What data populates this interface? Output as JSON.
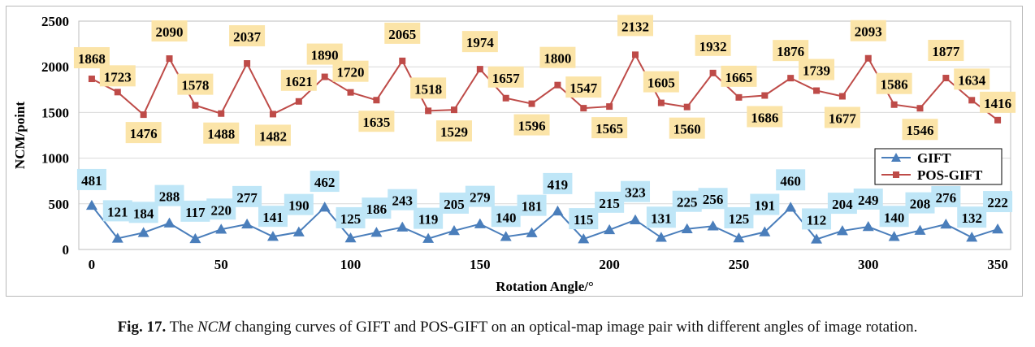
{
  "caption": {
    "label": "Fig. 17.",
    "pre": "The ",
    "italic": "NCM",
    "post": " changing curves of GIFT and POS-GIFT on an optical-map image pair with different angles of image rotation."
  },
  "chart_data": {
    "type": "line",
    "title": "",
    "xlabel": "Rotation Angle/°",
    "ylabel": "NCM/point",
    "xlim": [
      -5,
      355
    ],
    "ylim": [
      0,
      2500
    ],
    "xticks": [
      0,
      50,
      100,
      150,
      200,
      250,
      300,
      350
    ],
    "yticks": [
      0,
      500,
      1000,
      1500,
      2000,
      2500
    ],
    "grid": true,
    "legend_position": "right",
    "x": [
      0,
      10,
      20,
      30,
      40,
      50,
      60,
      70,
      80,
      90,
      100,
      110,
      120,
      130,
      140,
      150,
      160,
      170,
      180,
      190,
      200,
      210,
      220,
      230,
      240,
      250,
      260,
      270,
      280,
      290,
      300,
      310,
      320,
      330,
      340,
      350
    ],
    "series": [
      {
        "name": "GIFT",
        "color": "#4a7ebb",
        "label_bg": "#bfe6f7",
        "marker": "triangle",
        "values": [
          481,
          121,
          184,
          288,
          117,
          220,
          277,
          141,
          190,
          462,
          125,
          186,
          243,
          119,
          205,
          279,
          140,
          181,
          419,
          115,
          215,
          323,
          131,
          225,
          256,
          125,
          191,
          460,
          112,
          204,
          249,
          140,
          208,
          276,
          132,
          222
        ]
      },
      {
        "name": "POS-GIFT",
        "color": "#be4b48",
        "label_bg": "#fbe4a8",
        "marker": "square",
        "values": [
          1868,
          1723,
          1476,
          2090,
          1578,
          1488,
          2037,
          1482,
          1621,
          1890,
          1720,
          1635,
          2065,
          1518,
          1529,
          1974,
          1657,
          1596,
          1800,
          1547,
          1565,
          2132,
          1605,
          1560,
          1932,
          1665,
          1686,
          1876,
          1739,
          1677,
          2093,
          1586,
          1546,
          1877,
          1634,
          1416
        ]
      }
    ]
  }
}
